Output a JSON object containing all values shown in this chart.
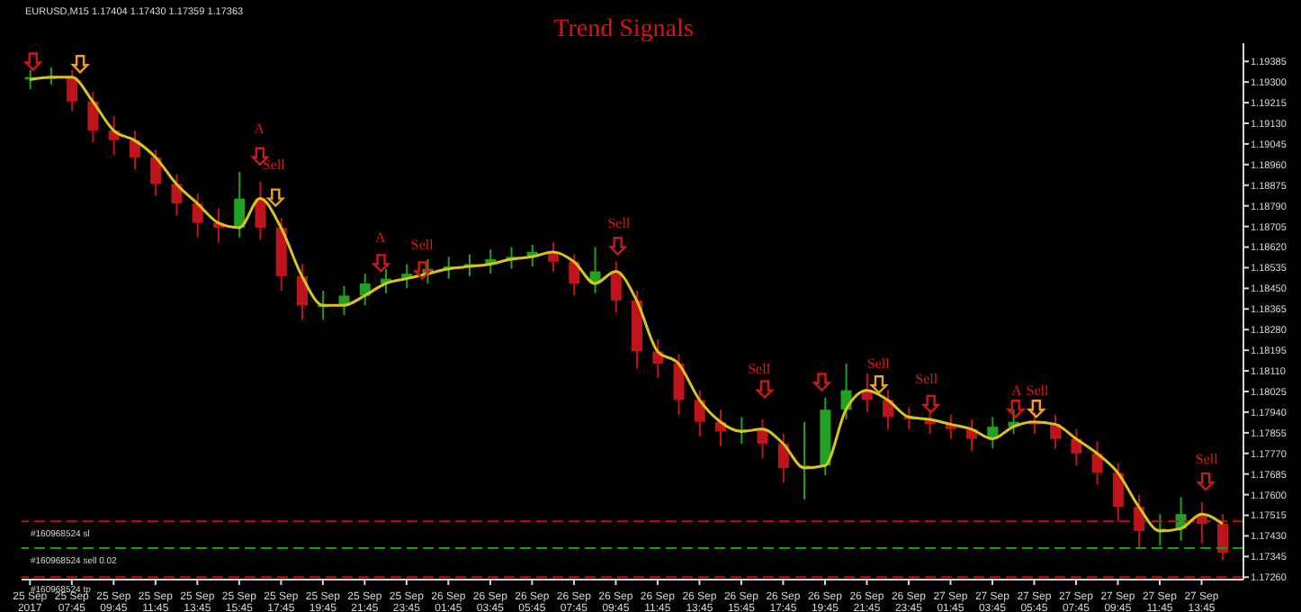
{
  "chart_data": {
    "type": "candlestick",
    "title": "Trend Signals",
    "categories": [
      "25 Sep 2017",
      null,
      "25 Sep 07:45",
      null,
      "25 Sep 09:45",
      null,
      "25 Sep 11:45",
      null,
      "25 Sep 13:45",
      null,
      "25 Sep 15:45",
      null,
      "25 Sep 17:45",
      null,
      "25 Sep 19:45",
      null,
      "25 Sep 21:45",
      null,
      "25 Sep 23:45",
      null,
      "26 Sep 01:45",
      null,
      "26 Sep 03:45",
      null,
      "26 Sep 05:45",
      null,
      "26 Sep 07:45",
      null,
      "26 Sep 09:45",
      null,
      "26 Sep 11:45",
      null,
      "26 Sep 13:45",
      null,
      "26 Sep 15:45",
      null,
      "26 Sep 17:45",
      null,
      "26 Sep 19:45",
      null,
      "26 Sep 21:45",
      null,
      "26 Sep 23:45",
      null,
      "27 Sep 01:45",
      null,
      "27 Sep 03:45",
      null,
      "27 Sep 05:45",
      null,
      "27 Sep 07:45",
      null,
      "27 Sep 09:45",
      null,
      "27 Sep 11:45",
      null,
      "27 Sep 13:45",
      null
    ],
    "ohlc": [
      [
        1.1931,
        1.1935,
        1.1927,
        1.1932
      ],
      [
        1.1932,
        1.1936,
        1.1929,
        1.1932
      ],
      [
        1.1932,
        1.1935,
        1.1918,
        1.1922
      ],
      [
        1.1922,
        1.1926,
        1.1905,
        1.191
      ],
      [
        1.191,
        1.1916,
        1.19,
        1.1906
      ],
      [
        1.1906,
        1.191,
        1.1894,
        1.1899
      ],
      [
        1.1899,
        1.1902,
        1.1883,
        1.1888
      ],
      [
        1.1888,
        1.1892,
        1.1875,
        1.188
      ],
      [
        1.188,
        1.1884,
        1.1866,
        1.1872
      ],
      [
        1.1872,
        1.1878,
        1.1864,
        1.187
      ],
      [
        1.187,
        1.1893,
        1.1866,
        1.1882
      ],
      [
        1.1882,
        1.1889,
        1.1865,
        1.187
      ],
      [
        1.187,
        1.1874,
        1.1844,
        1.185
      ],
      [
        1.185,
        1.1855,
        1.1832,
        1.1838
      ],
      [
        1.1838,
        1.1844,
        1.1832,
        1.1838
      ],
      [
        1.1838,
        1.1846,
        1.1834,
        1.1842
      ],
      [
        1.1842,
        1.1851,
        1.1838,
        1.1847
      ],
      [
        1.1847,
        1.1853,
        1.1843,
        1.1849
      ],
      [
        1.1849,
        1.1855,
        1.1845,
        1.1851
      ],
      [
        1.1851,
        1.1857,
        1.1847,
        1.1853
      ],
      [
        1.1853,
        1.1858,
        1.1849,
        1.1854
      ],
      [
        1.1854,
        1.1859,
        1.185,
        1.1855
      ],
      [
        1.1855,
        1.1861,
        1.1851,
        1.1857
      ],
      [
        1.1857,
        1.1862,
        1.1853,
        1.1858
      ],
      [
        1.1858,
        1.1863,
        1.1854,
        1.186
      ],
      [
        1.186,
        1.1864,
        1.1852,
        1.1856
      ],
      [
        1.1856,
        1.1859,
        1.1842,
        1.1847
      ],
      [
        1.1847,
        1.1862,
        1.1843,
        1.1852
      ],
      [
        1.1852,
        1.1856,
        1.1835,
        1.184
      ],
      [
        1.184,
        1.1844,
        1.1812,
        1.1819
      ],
      [
        1.1819,
        1.1824,
        1.1808,
        1.1814
      ],
      [
        1.1814,
        1.1818,
        1.1793,
        1.1799
      ],
      [
        1.1799,
        1.1803,
        1.1784,
        1.179
      ],
      [
        1.179,
        1.1795,
        1.178,
        1.1786
      ],
      [
        1.1786,
        1.1792,
        1.1781,
        1.1787
      ],
      [
        1.1787,
        1.1791,
        1.1775,
        1.1781
      ],
      [
        1.1781,
        1.1785,
        1.1765,
        1.1771
      ],
      [
        1.1771,
        1.179,
        1.1758,
        1.1772
      ],
      [
        1.1772,
        1.18,
        1.1768,
        1.1795
      ],
      [
        1.1795,
        1.1814,
        1.1791,
        1.1803
      ],
      [
        1.1803,
        1.181,
        1.1794,
        1.1799
      ],
      [
        1.1799,
        1.1803,
        1.1787,
        1.1792
      ],
      [
        1.1792,
        1.1796,
        1.1787,
        1.1791
      ],
      [
        1.1791,
        1.1795,
        1.1785,
        1.1789
      ],
      [
        1.1789,
        1.1793,
        1.1783,
        1.1787
      ],
      [
        1.1787,
        1.1791,
        1.1778,
        1.1783
      ],
      [
        1.1783,
        1.1792,
        1.1779,
        1.1788
      ],
      [
        1.1788,
        1.1795,
        1.1785,
        1.179
      ],
      [
        1.179,
        1.1794,
        1.1785,
        1.1789
      ],
      [
        1.1789,
        1.1793,
        1.1779,
        1.1783
      ],
      [
        1.1783,
        1.1787,
        1.1772,
        1.1777
      ],
      [
        1.1777,
        1.1782,
        1.1764,
        1.1769
      ],
      [
        1.1769,
        1.1773,
        1.1749,
        1.1755
      ],
      [
        1.1755,
        1.176,
        1.1738,
        1.1745
      ],
      [
        1.1745,
        1.1752,
        1.1739,
        1.1746
      ],
      [
        1.1746,
        1.1759,
        1.1741,
        1.1752
      ],
      [
        1.1752,
        1.1757,
        1.174,
        1.1748
      ],
      [
        1.1748,
        1.1752,
        1.1733,
        1.1736
      ]
    ],
    "colors": [
      "#22a022",
      "#22a022",
      "#c0141c",
      "#c0141c",
      "#c0141c",
      "#c0141c",
      "#c0141c",
      "#c0141c",
      "#c0141c",
      "#c0141c",
      "#22a022",
      "#c0141c",
      "#c0141c",
      "#c0141c",
      "#22a022",
      "#22a022",
      "#22a022",
      "#22a022",
      "#22a022",
      "#22a022",
      "#22a022",
      "#22a022",
      "#22a022",
      "#22a022",
      "#22a022",
      "#c0141c",
      "#c0141c",
      "#22a022",
      "#c0141c",
      "#c0141c",
      "#c0141c",
      "#c0141c",
      "#c0141c",
      "#c0141c",
      "#22a022",
      "#c0141c",
      "#c0141c",
      "#22a022",
      "#22a022",
      "#22a022",
      "#c0141c",
      "#c0141c",
      "#c0141c",
      "#c0141c",
      "#c0141c",
      "#c0141c",
      "#22a022",
      "#22a022",
      "#c0141c",
      "#c0141c",
      "#c0141c",
      "#c0141c",
      "#c0141c",
      "#c0141c",
      "#22a022",
      "#22a022",
      "#c0141c",
      "#c0141c"
    ],
    "series": [
      {
        "type": "line",
        "color": "#d8c420",
        "values": [
          1.1931,
          1.1932,
          1.1932,
          1.1922,
          1.191,
          1.1906,
          1.1899,
          1.1888,
          1.188,
          1.1872,
          1.187,
          1.1882,
          1.187,
          1.185,
          1.1838,
          1.1838,
          1.1842,
          1.1847,
          1.1849,
          1.1851,
          1.1853,
          1.1854,
          1.1855,
          1.1857,
          1.1858,
          1.186,
          1.1856,
          1.1847,
          1.1852,
          1.184,
          1.1819,
          1.1814,
          1.1799,
          1.179,
          1.1786,
          1.1787,
          1.1781,
          1.1771,
          1.1772,
          1.1795,
          1.1803,
          1.1799,
          1.1792,
          1.1791,
          1.1789,
          1.1787,
          1.1783,
          1.1788,
          1.179,
          1.1789,
          1.1783,
          1.1777,
          1.1769,
          1.1755,
          1.1745,
          1.1746,
          1.1752,
          1.1748
        ]
      }
    ],
    "ylim": [
      1.1725,
      1.1946
    ],
    "yticks": [
      {
        "value": 1.1726,
        "label": "1.17260"
      },
      1.17345,
      {
        "value": 1.1743,
        "label": "1.17430"
      },
      1.17515,
      {
        "value": 1.176,
        "label": "1.17600"
      },
      1.17685,
      {
        "value": 1.1777,
        "label": "1.17770"
      },
      1.17855,
      {
        "value": 1.1794,
        "label": "1.17940"
      },
      1.18025,
      {
        "value": 1.1811,
        "label": "1.18110"
      },
      1.18195,
      {
        "value": 1.1828,
        "label": "1.18280"
      },
      1.18365,
      {
        "value": 1.1845,
        "label": "1.18450"
      },
      1.18535,
      {
        "value": 1.1862,
        "label": "1.18620"
      },
      1.18705,
      {
        "value": 1.1879,
        "label": "1.18790"
      },
      1.18875,
      {
        "value": 1.1896,
        "label": "1.18960"
      },
      1.19045,
      {
        "value": 1.1913,
        "label": "1.19130"
      },
      1.19215,
      {
        "value": 1.193,
        "label": "1.19300"
      },
      1.19385
    ],
    "ref_lines": [
      {
        "axis": "y",
        "value": 1.1749,
        "label": "#160968524 sl",
        "color": "#c01010",
        "line_style": "dashed"
      },
      {
        "axis": "y",
        "value": 1.1738,
        "label": "#160968524 sell 0.02",
        "color": "#10a010",
        "line_style": "dashed"
      },
      {
        "axis": "y",
        "value": 1.1726,
        "label": "#160968524 tp",
        "color": "#c01010",
        "line_style": "dashed"
      }
    ],
    "annotations": [
      "EURUSD,M15 1.17404 1.17430 1.17359 1.17363",
      "A",
      "Sell",
      "A",
      "Sell",
      "Sell",
      "Sell",
      "Sell",
      "Sell",
      "A",
      "Sell",
      "Sell"
    ],
    "grid": false,
    "legend": false
  }
}
